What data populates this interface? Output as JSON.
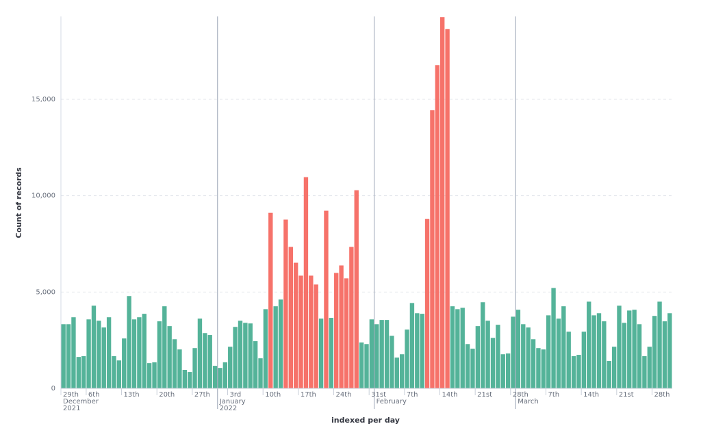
{
  "chart_data": {
    "type": "bar",
    "x_label": "indexed per day",
    "y_label": "Count of records",
    "x": [
      "2021-12-01",
      "2021-12-02",
      "2021-12-03",
      "2021-12-04",
      "2021-12-05",
      "2021-12-06",
      "2021-12-07",
      "2021-12-08",
      "2021-12-09",
      "2021-12-10",
      "2021-12-11",
      "2021-12-12",
      "2021-12-13",
      "2021-12-14",
      "2021-12-15",
      "2021-12-16",
      "2021-12-17",
      "2021-12-18",
      "2021-12-19",
      "2021-12-20",
      "2021-12-21",
      "2021-12-22",
      "2021-12-23",
      "2021-12-24",
      "2021-12-25",
      "2021-12-26",
      "2021-12-27",
      "2021-12-28",
      "2021-12-29",
      "2021-12-30",
      "2021-12-31",
      "2022-01-01",
      "2022-01-02",
      "2022-01-03",
      "2022-01-04",
      "2022-01-05",
      "2022-01-06",
      "2022-01-07",
      "2022-01-08",
      "2022-01-09",
      "2022-01-10",
      "2022-01-11",
      "2022-01-12",
      "2022-01-13",
      "2022-01-14",
      "2022-01-15",
      "2022-01-16",
      "2022-01-17",
      "2022-01-18",
      "2022-01-19",
      "2022-01-20",
      "2022-01-21",
      "2022-01-22",
      "2022-01-23",
      "2022-01-24",
      "2022-01-25",
      "2022-01-26",
      "2022-01-27",
      "2022-01-28",
      "2022-01-29",
      "2022-01-30",
      "2022-01-31",
      "2022-02-01",
      "2022-02-02",
      "2022-02-03",
      "2022-02-04",
      "2022-02-05",
      "2022-02-06",
      "2022-02-07",
      "2022-02-08",
      "2022-02-09",
      "2022-02-10",
      "2022-02-11",
      "2022-02-12",
      "2022-02-13",
      "2022-02-14",
      "2022-02-15",
      "2022-02-16",
      "2022-02-17",
      "2022-02-18",
      "2022-02-19",
      "2022-02-20",
      "2022-02-21",
      "2022-02-22",
      "2022-02-23",
      "2022-02-24",
      "2022-02-25",
      "2022-02-26",
      "2022-02-27",
      "2022-02-28",
      "2022-03-01",
      "2022-03-02",
      "2022-03-03",
      "2022-03-04",
      "2022-03-05",
      "2022-03-06",
      "2022-03-07",
      "2022-03-08",
      "2022-03-09",
      "2022-03-10",
      "2022-03-11",
      "2022-03-12",
      "2022-03-13",
      "2022-03-14",
      "2022-03-15",
      "2022-03-16",
      "2022-03-17",
      "2022-03-18",
      "2022-03-19",
      "2022-03-20",
      "2022-03-21",
      "2022-03-22",
      "2022-03-23",
      "2022-03-24",
      "2022-03-25",
      "2022-03-26",
      "2022-03-27",
      "2022-03-28",
      "2022-03-29",
      "2022-03-30",
      "2022-03-31"
    ],
    "values": [
      3330,
      3330,
      3690,
      1630,
      1670,
      3580,
      4290,
      3510,
      3160,
      3690,
      1670,
      1450,
      2590,
      4790,
      3580,
      3690,
      3870,
      1310,
      1350,
      3480,
      4260,
      3230,
      2550,
      2020,
      960,
      850,
      2090,
      3620,
      2870,
      2770,
      1170,
      1060,
      1350,
      2160,
      3190,
      3510,
      3400,
      3370,
      2450,
      1560,
      4110,
      9110,
      4260,
      4610,
      8760,
      7340,
      6520,
      5850,
      10960,
      5850,
      5390,
      3620,
      9220,
      3660,
      5990,
      6380,
      5710,
      7340,
      10280,
      2380,
      2300,
      3580,
      3330,
      3550,
      3550,
      2730,
      1600,
      1770,
      3050,
      4430,
      3900,
      3870,
      8790,
      14430,
      16770,
      19260,
      18650,
      4260,
      4110,
      4180,
      2300,
      2060,
      3230,
      4470,
      3510,
      2620,
      3300,
      1770,
      1810,
      3720,
      4080,
      3330,
      3160,
      2550,
      2090,
      2020,
      3790,
      5210,
      3620,
      4260,
      2940,
      1670,
      1740,
      2940,
      4500,
      3790,
      3900,
      3480,
      1420,
      2160,
      4290,
      3400,
      4040,
      4080,
      3330,
      1670,
      2160,
      3760,
      4500,
      3480,
      3900
    ],
    "colors": [
      "#54b399",
      "#54b399",
      "#54b399",
      "#54b399",
      "#54b399",
      "#54b399",
      "#54b399",
      "#54b399",
      "#54b399",
      "#54b399",
      "#54b399",
      "#54b399",
      "#54b399",
      "#54b399",
      "#54b399",
      "#54b399",
      "#54b399",
      "#54b399",
      "#54b399",
      "#54b399",
      "#54b399",
      "#54b399",
      "#54b399",
      "#54b399",
      "#54b399",
      "#54b399",
      "#54b399",
      "#54b399",
      "#54b399",
      "#54b399",
      "#54b399",
      "#54b399",
      "#54b399",
      "#54b399",
      "#54b399",
      "#54b399",
      "#54b399",
      "#54b399",
      "#54b399",
      "#54b399",
      "#54b399",
      "#f6726a",
      "#54b399",
      "#54b399",
      "#f6726a",
      "#f6726a",
      "#f6726a",
      "#f6726a",
      "#f6726a",
      "#f6726a",
      "#f6726a",
      "#54b399",
      "#f6726a",
      "#54b399",
      "#f6726a",
      "#f6726a",
      "#f6726a",
      "#f6726a",
      "#f6726a",
      "#54b399",
      "#54b399",
      "#54b399",
      "#54b399",
      "#54b399",
      "#54b399",
      "#54b399",
      "#54b399",
      "#54b399",
      "#54b399",
      "#54b399",
      "#54b399",
      "#54b399",
      "#f6726a",
      "#f6726a",
      "#f6726a",
      "#f6726a",
      "#f6726a",
      "#54b399",
      "#54b399",
      "#54b399",
      "#54b399",
      "#54b399",
      "#54b399",
      "#54b399",
      "#54b399",
      "#54b399",
      "#54b399",
      "#54b399",
      "#54b399",
      "#54b399",
      "#54b399",
      "#54b399",
      "#54b399",
      "#54b399",
      "#54b399",
      "#54b399",
      "#54b399",
      "#54b399",
      "#54b399",
      "#54b399",
      "#54b399",
      "#54b399",
      "#54b399",
      "#54b399",
      "#54b399",
      "#54b399",
      "#54b399",
      "#54b399",
      "#54b399",
      "#54b399",
      "#54b399",
      "#54b399",
      "#54b399",
      "#54b399",
      "#54b399",
      "#54b399",
      "#54b399",
      "#54b399",
      "#54b399",
      "#54b399",
      "#54b399"
    ],
    "xlim": [
      "2021-12-01",
      "2022-04-01"
    ],
    "xticks": [
      {
        "value": "2021-11-29",
        "label": "29th"
      },
      {
        "value": "2021-12-06",
        "label": "6th"
      },
      {
        "value": "2021-12-13",
        "label": "13th"
      },
      {
        "value": "2021-12-20",
        "label": "20th"
      },
      {
        "value": "2021-12-27",
        "label": "27th"
      },
      {
        "value": "2022-01-03",
        "label": "3rd"
      },
      {
        "value": "2022-01-10",
        "label": "10th"
      },
      {
        "value": "2022-01-17",
        "label": "17th"
      },
      {
        "value": "2022-01-24",
        "label": "24th"
      },
      {
        "value": "2022-01-31",
        "label": "31st"
      },
      {
        "value": "2022-02-07",
        "label": "7th"
      },
      {
        "value": "2022-02-14",
        "label": "14th"
      },
      {
        "value": "2022-02-21",
        "label": "21st"
      },
      {
        "value": "2022-02-28",
        "label": "28th"
      },
      {
        "value": "2022-03-07",
        "label": "7th"
      },
      {
        "value": "2022-03-14",
        "label": "14th"
      },
      {
        "value": "2022-03-21",
        "label": "21st"
      },
      {
        "value": "2022-03-28",
        "label": "28th"
      }
    ],
    "month_ticks": [
      {
        "value": "2021-12-01",
        "label": "December",
        "year": "2021"
      },
      {
        "value": "2022-01-01",
        "label": "January",
        "year": "2022"
      },
      {
        "value": "2022-02-01",
        "label": "February"
      },
      {
        "value": "2022-03-01",
        "label": "March"
      }
    ],
    "ylim": [
      0,
      19300
    ],
    "yticks": [
      0,
      {
        "value": 5000,
        "label": "5,000"
      },
      {
        "value": 10000,
        "label": "10,000"
      },
      {
        "value": 15000,
        "label": "15,000"
      }
    ],
    "grid": true
  }
}
